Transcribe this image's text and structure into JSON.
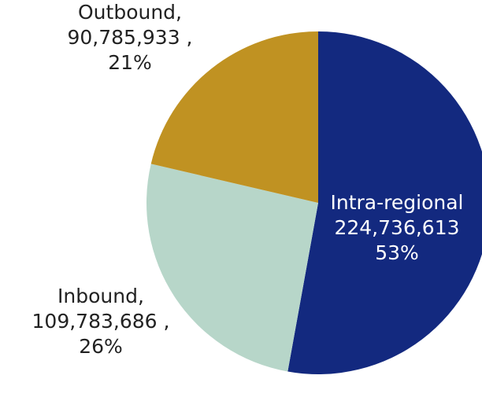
{
  "chart_data": {
    "type": "pie",
    "title": "",
    "slices": [
      {
        "name": "Intra-regional",
        "value": 224736613,
        "percent": "53%",
        "label_lines": [
          "Intra-regional",
          "224,736,613",
          "53%"
        ],
        "color": "#13297f",
        "label_color": "#ffffff"
      },
      {
        "name": "Inbound",
        "value": 109783686,
        "percent": "26%",
        "label_lines": [
          "Inbound,",
          "109,783,686 ,",
          "26%"
        ],
        "color": "#b7d6c9",
        "label_color": "#222222"
      },
      {
        "name": "Outbound",
        "value": 90785933,
        "percent": "21%",
        "label_lines": [
          "Outbound,",
          "90,785,933 ,",
          "21%"
        ],
        "color": "#c09222",
        "label_color": "#222222"
      }
    ],
    "legend": "none"
  }
}
